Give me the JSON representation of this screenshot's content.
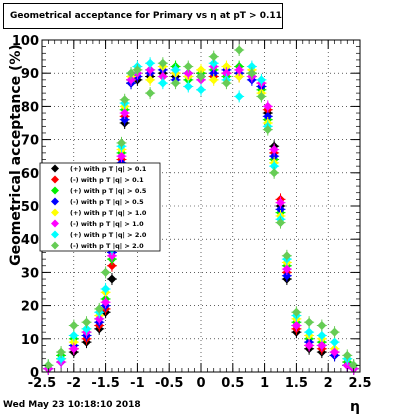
{
  "header": {
    "title": "Geometrical acceptance for Primary vs   η at pT > 0.11"
  },
  "footer": {
    "datetime": "Wed May 23 10:18:10 2018"
  },
  "chart_data": {
    "type": "scatter",
    "xlabel": "η",
    "ylabel": "Geometrical acceptance (%)",
    "xlim": [
      -2.5,
      2.5
    ],
    "ylim": [
      0,
      100
    ],
    "grid": true,
    "legend_position": "left-middle",
    "x_ticks": [
      -2.5,
      -2,
      -1.5,
      -1,
      -0.5,
      0,
      0.5,
      1,
      1.5,
      2,
      2.5
    ],
    "y_ticks": [
      0,
      10,
      20,
      30,
      40,
      50,
      60,
      70,
      80,
      90,
      100
    ],
    "series": [
      {
        "name": "(+) with p T |q| > 0.1",
        "color": "#000000",
        "x": [
          -2.4,
          -2.2,
          -2.0,
          -1.8,
          -1.6,
          -1.5,
          -1.4,
          -1.3,
          -1.25,
          -1.2,
          -1.1,
          -1.0,
          -0.8,
          -0.6,
          -0.4,
          -0.2,
          0.0,
          0.2,
          0.4,
          0.6,
          0.8,
          0.95,
          1.05,
          1.15,
          1.25,
          1.35,
          1.5,
          1.7,
          1.9,
          2.1,
          2.3,
          2.4
        ],
        "y": [
          1,
          3,
          6,
          9,
          13,
          18,
          28,
          50,
          62,
          75,
          87,
          88,
          89,
          90,
          89,
          90,
          89,
          89,
          90,
          90,
          89,
          86,
          78,
          68,
          50,
          28,
          12,
          7,
          6,
          5,
          2,
          1
        ]
      },
      {
        "name": "(-) with p T |q| > 0.1",
        "color": "#ff0000",
        "x": [
          -2.4,
          -2.2,
          -2.0,
          -1.8,
          -1.6,
          -1.5,
          -1.4,
          -1.3,
          -1.25,
          -1.2,
          -1.1,
          -1.0,
          -0.8,
          -0.6,
          -0.4,
          -0.2,
          0.0,
          0.2,
          0.4,
          0.6,
          0.8,
          0.95,
          1.05,
          1.15,
          1.25,
          1.35,
          1.5,
          1.7,
          1.9,
          2.1,
          2.3,
          2.4
        ],
        "y": [
          1,
          4,
          7,
          10,
          14,
          19,
          32,
          52,
          64,
          77,
          88,
          89,
          90,
          89,
          90,
          89,
          90,
          89,
          90,
          89,
          90,
          87,
          79,
          66,
          52,
          30,
          13,
          8,
          7,
          6,
          3,
          1
        ]
      },
      {
        "name": "(+) with p T |q| > 0.5",
        "color": "#00ee00",
        "x": [
          -2.4,
          -2.2,
          -2.0,
          -1.8,
          -1.6,
          -1.5,
          -1.4,
          -1.3,
          -1.25,
          -1.2,
          -1.1,
          -1.0,
          -0.8,
          -0.6,
          -0.4,
          -0.2,
          0.0,
          0.2,
          0.4,
          0.6,
          0.8,
          0.95,
          1.05,
          1.15,
          1.25,
          1.35,
          1.5,
          1.7,
          1.9,
          2.1,
          2.3,
          2.4
        ],
        "y": [
          2,
          5,
          10,
          12,
          16,
          22,
          34,
          55,
          66,
          79,
          88,
          90,
          91,
          89,
          92,
          88,
          90,
          91,
          89,
          92,
          90,
          85,
          76,
          64,
          48,
          32,
          15,
          10,
          9,
          6,
          3,
          2
        ]
      },
      {
        "name": "(-) with p T |q| > 0.5",
        "color": "#0000ff",
        "x": [
          -2.4,
          -2.2,
          -2.0,
          -1.8,
          -1.6,
          -1.5,
          -1.4,
          -1.3,
          -1.25,
          -1.2,
          -1.1,
          -1.0,
          -0.8,
          -0.6,
          -0.4,
          -0.2,
          0.0,
          0.2,
          0.4,
          0.6,
          0.8,
          0.95,
          1.05,
          1.15,
          1.25,
          1.35,
          1.5,
          1.7,
          1.9,
          2.1,
          2.3,
          2.4
        ],
        "y": [
          1,
          3,
          8,
          11,
          15,
          20,
          36,
          51,
          63,
          76,
          87,
          89,
          90,
          91,
          88,
          90,
          89,
          90,
          91,
          90,
          88,
          86,
          77,
          65,
          49,
          29,
          14,
          9,
          8,
          5,
          2,
          1
        ]
      },
      {
        "name": "(+) with p T |q| > 1.0",
        "color": "#ffff00",
        "x": [
          -2.4,
          -2.2,
          -2.0,
          -1.8,
          -1.6,
          -1.5,
          -1.4,
          -1.3,
          -1.25,
          -1.2,
          -1.1,
          -1.0,
          -0.8,
          -0.6,
          -0.4,
          -0.2,
          0.0,
          0.2,
          0.4,
          0.6,
          0.8,
          0.95,
          1.05,
          1.15,
          1.25,
          1.35,
          1.5,
          1.7,
          1.9,
          2.1,
          2.3,
          2.4
        ],
        "y": [
          2,
          4,
          9,
          13,
          17,
          24,
          38,
          54,
          67,
          80,
          89,
          91,
          88,
          92,
          90,
          89,
          91,
          88,
          92,
          89,
          91,
          84,
          75,
          63,
          47,
          33,
          16,
          11,
          10,
          7,
          4,
          2
        ]
      },
      {
        "name": "(-) with p T |q| > 1.0",
        "color": "#ff00ff",
        "x": [
          -2.4,
          -2.2,
          -2.0,
          -1.8,
          -1.6,
          -1.5,
          -1.4,
          -1.3,
          -1.25,
          -1.2,
          -1.1,
          -1.0,
          -0.8,
          -0.6,
          -0.4,
          -0.2,
          0.0,
          0.2,
          0.4,
          0.6,
          0.8,
          0.95,
          1.05,
          1.15,
          1.25,
          1.35,
          1.5,
          1.7,
          1.9,
          2.1,
          2.3,
          2.4
        ],
        "y": [
          1,
          3,
          7,
          12,
          16,
          21,
          35,
          53,
          65,
          78,
          88,
          90,
          91,
          89,
          91,
          90,
          88,
          92,
          90,
          91,
          89,
          87,
          80,
          67,
          51,
          31,
          14,
          8,
          8,
          6,
          2,
          1
        ]
      },
      {
        "name": "(+) with p T |q| > 2.0",
        "color": "#00ffff",
        "x": [
          -2.4,
          -2.2,
          -2.0,
          -1.8,
          -1.6,
          -1.5,
          -1.4,
          -1.3,
          -1.25,
          -1.2,
          -1.1,
          -1.0,
          -0.8,
          -0.6,
          -0.4,
          -0.2,
          0.0,
          0.2,
          0.4,
          0.6,
          0.8,
          0.95,
          1.05,
          1.15,
          1.25,
          1.35,
          1.5,
          1.7,
          1.9,
          2.1,
          2.3,
          2.4
        ],
        "y": [
          2,
          4,
          11,
          13,
          18,
          25,
          37,
          57,
          68,
          81,
          90,
          92,
          93,
          87,
          91,
          86,
          85,
          93,
          88,
          83,
          92,
          88,
          74,
          62,
          46,
          34,
          17,
          12,
          11,
          9,
          4,
          2
        ]
      },
      {
        "name": "(-) with p T |q| > 2.0",
        "color": "#66cc55",
        "x": [
          -2.4,
          -2.2,
          -2.0,
          -1.8,
          -1.6,
          -1.5,
          -1.4,
          -1.3,
          -1.25,
          -1.2,
          -1.1,
          -1.0,
          -0.8,
          -0.6,
          -0.4,
          -0.2,
          0.0,
          0.2,
          0.4,
          0.6,
          0.8,
          0.95,
          1.05,
          1.15,
          1.25,
          1.35,
          1.5,
          1.7,
          1.9,
          2.1,
          2.3,
          2.4
        ],
        "y": [
          2,
          6,
          14,
          15,
          19,
          30,
          39,
          58,
          69,
          82,
          90,
          91,
          84,
          93,
          87,
          92,
          89,
          95,
          87,
          97,
          90,
          83,
          73,
          60,
          45,
          35,
          18,
          15,
          14,
          12,
          5,
          2
        ]
      }
    ]
  }
}
